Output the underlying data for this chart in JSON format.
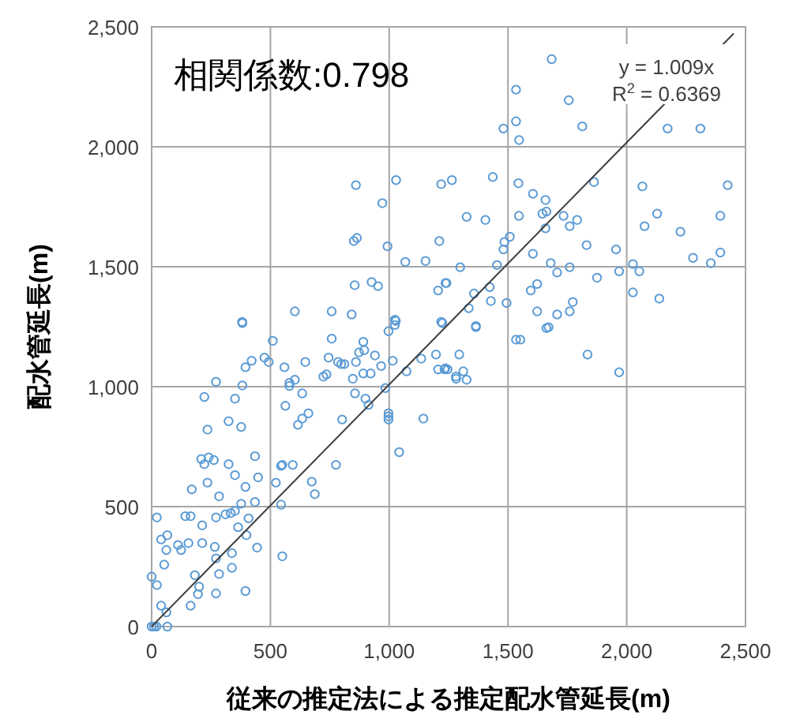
{
  "chart_data": {
    "type": "scatter",
    "xlabel": "従来の推定法による推定配水管延長(m)",
    "ylabel": "配水管延長(m)",
    "annotations": [
      "相関係数:0.798",
      "y = 1.009x",
      "R$^{2}$ = 0.6369"
    ],
    "xlim": [
      0,
      2500
    ],
    "ylim": [
      0,
      2500
    ],
    "xticks": [
      0,
      500,
      {
        "value": 1000,
        "label": "1,000"
      },
      {
        "value": 1500,
        "label": "1,500"
      },
      {
        "value": 2000,
        "label": "2,000"
      },
      {
        "value": 2500,
        "label": "2,500"
      }
    ],
    "yticks": [
      0,
      500,
      {
        "value": 1000,
        "label": "1,000"
      },
      {
        "value": 1500,
        "label": "1,500"
      },
      {
        "value": 2000,
        "label": "2,000"
      },
      {
        "value": 2500,
        "label": "2,500"
      }
    ],
    "grid": true,
    "marker": "circle",
    "series": [
      {
        "color": "#5b9bd5",
        "x": [
          0,
          10,
          20,
          66,
          0,
          22,
          40,
          62,
          22,
          53,
          40,
          66,
          62,
          111,
          124,
          142,
          164,
          155,
          169,
          182,
          200,
          195,
          164,
          213,
          213,
          222,
          235,
          209,
          240,
          222,
          262,
          235,
          271,
          284,
          271,
          266,
          271,
          284,
          271,
          311,
          333,
          351,
          324,
          324,
          351,
          351,
          338,
          338,
          364,
          377,
          382,
          377,
          395,
          408,
          399,
          395,
          395,
          421,
          382,
          435,
          435,
          448,
          444,
          475,
          493,
          510,
          523,
          550,
          545,
          550,
          594,
          545,
          559,
          563,
          580,
          603,
          580,
          634,
          616,
          634,
          660,
          647,
          674,
          687,
          723,
          736,
          745,
          758,
          776,
          785,
          798,
          811,
          802,
          847,
          856,
          860,
          873,
          895,
          891,
          891,
          900,
          913,
          922,
          940,
          966,
          984,
          997,
          997,
          997,
          997,
          1024,
          1028,
          1015,
          1042,
          1073,
          1135,
          1144,
          1197,
          1206,
          1233,
          1246,
          1224,
          1282,
          860,
          1029,
          971,
          1219,
          1264,
          851,
          864,
          993,
          1068,
          1153,
          1211,
          855,
          926,
          953,
          1206,
          1237,
          381,
          603,
          758,
          842,
          1024,
          1219,
          1684,
          1534,
          1756,
          1481,
          1534,
          1547,
          1813,
          2172,
          2310,
          1436,
          1544,
          1605,
          1658,
          1862,
          2066,
          2425,
          1326,
          1405,
          1546,
          1645,
          1662,
          1658,
          1734,
          1760,
          1791,
          2075,
          2128,
          2226,
          2394,
          1508,
          1485,
          1481,
          1605,
          1831,
          1955,
          2279,
          2354,
          2394,
          1454,
          1299,
          1241,
          1680,
          1707,
          1760,
          1875,
          1968,
          2026,
          2053,
          2026,
          2137,
          1423,
          1428,
          1357,
          1335,
          1494,
          1596,
          1623,
          1623,
          1707,
          1760,
          1773,
          1671,
          1365,
          1365,
          1295,
          1237,
          1281,
          1312,
          1326,
          1534,
          1552,
          1662,
          1835,
          1968
        ],
        "values": [
          0,
          0,
          0,
          0,
          208,
          173,
          87,
          59,
          455,
          258,
          363,
          381,
          319,
          340,
          319,
          460,
          460,
          348,
          572,
          214,
          166,
          135,
          87,
          422,
          348,
          957,
          821,
          698,
          705,
          677,
          694,
          600,
          1020,
          543,
          455,
          332,
          284,
          219,
          138,
          468,
          473,
          482,
          677,
          856,
          950,
          631,
          306,
          245,
          414,
          832,
          1005,
          512,
          582,
          451,
          381,
          148,
          1081,
          1108,
          1265,
          710,
          519,
          622,
          329,
          1121,
          1103,
          1191,
          600,
          293,
          670,
          674,
          674,
          508,
          1081,
          920,
          1016,
          1029,
          1003,
          972,
          841,
          867,
          889,
          1103,
          604,
          552,
          1042,
          1051,
          1121,
          1200,
          674,
          1103,
          1094,
          1094,
          863,
          1033,
          972,
          1103,
          1143,
          1152,
          1187,
          1055,
          950,
          924,
          1055,
          1130,
          1086,
          994,
          889,
          876,
          863,
          1231,
          1257,
          1274,
          1108,
          727,
          1064,
          1117,
          867,
          1134,
          1072,
          1072,
          1072,
          1265,
          1033,
          1840,
          1861,
          1765,
          1844,
          1861,
          1607,
          1620,
          1585,
          1520,
          1524,
          1607,
          1423,
          1436,
          1419,
          1401,
          1432,
          1270,
          1314,
          1314,
          1301,
          1279,
          1270,
          2365,
          2238,
          2194,
          2076,
          2106,
          2028,
          2085,
          2076,
          2076,
          1874,
          1848,
          1804,
          1778,
          1853,
          1835,
          1840,
          1708,
          1695,
          1712,
          1721,
          1730,
          1660,
          1712,
          1669,
          1695,
          1669,
          1721,
          1646,
          1712,
          1625,
          1603,
          1572,
          1554,
          1590,
          1572,
          1537,
          1515,
          1559,
          1507,
          1498,
          1432,
          1515,
          1476,
          1498,
          1454,
          1481,
          1511,
          1481,
          1393,
          1367,
          1415,
          1357,
          1388,
          1327,
          1349,
          1401,
          1428,
          1314,
          1301,
          1314,
          1353,
          1248,
          1253,
          1248,
          1134,
          1077,
          1042,
          1064,
          1029,
          1196,
          1196,
          1244,
          1134,
          1060
        ]
      },
      {
        "type": "line",
        "color": "#404040",
        "marker": "none",
        "x": [
          0,
          2450
        ],
        "values": [
          0,
          2472
        ]
      }
    ]
  }
}
